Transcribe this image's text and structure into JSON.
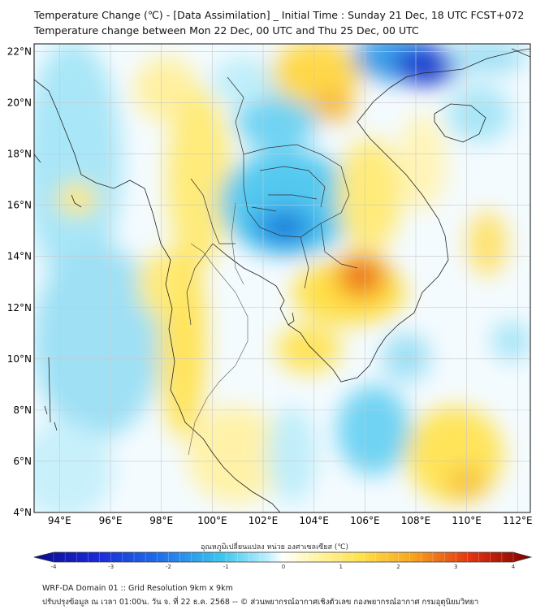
{
  "title": {
    "line1": "Temperature Change (℃) - [Data Assimilation] _ Initial Time : Sunday 21 Dec, 18 UTC FCST+072",
    "line2": "Temperature change between Mon 22 Dec, 00 UTC and Thu 25 Dec, 00 UTC"
  },
  "map": {
    "lat_labels": [
      "22°N",
      "20°N",
      "18°N",
      "16°N",
      "14°N",
      "12°N",
      "10°N",
      "8°N",
      "6°N",
      "4°N"
    ],
    "lon_labels": [
      "94°E",
      "96°E",
      "98°E",
      "100°E",
      "102°E",
      "104°E",
      "106°E",
      "108°E",
      "110°E",
      "112°E"
    ],
    "lat_range": [
      4,
      22.3
    ],
    "lon_range": [
      93,
      112.5
    ]
  },
  "colorbar": {
    "title": "อุณหภูมิเปลี่ยนแปลง หน่วย องศาเซลเซียส (℃)",
    "tick_labels": [
      "-4",
      "-3",
      "-2",
      "-1",
      "0",
      "1",
      "2",
      "3",
      "4"
    ],
    "range": [
      -4,
      4
    ]
  },
  "footer": {
    "line1": "WRF-DA Domain 01 :: Grid Resolution 9km x 9km",
    "line2": "ปรับปรุงข้อมูล ณ เวลา 01:00น. วัน จ. ที่ 22 ธ.ค. 2568 -- © ส่วนพยากรณ์อากาศเชิงตัวเลข กองพยากรณ์อากาศ กรมอุตุนิยมวิทยา"
  },
  "colors": {
    "low": "#0a0a8c",
    "cold": "#1560d8",
    "cool": "#3cc8ef",
    "neutral": "#ffffff",
    "warm": "#ffe04a",
    "hot": "#f08a1c",
    "high": "#7a0000"
  }
}
